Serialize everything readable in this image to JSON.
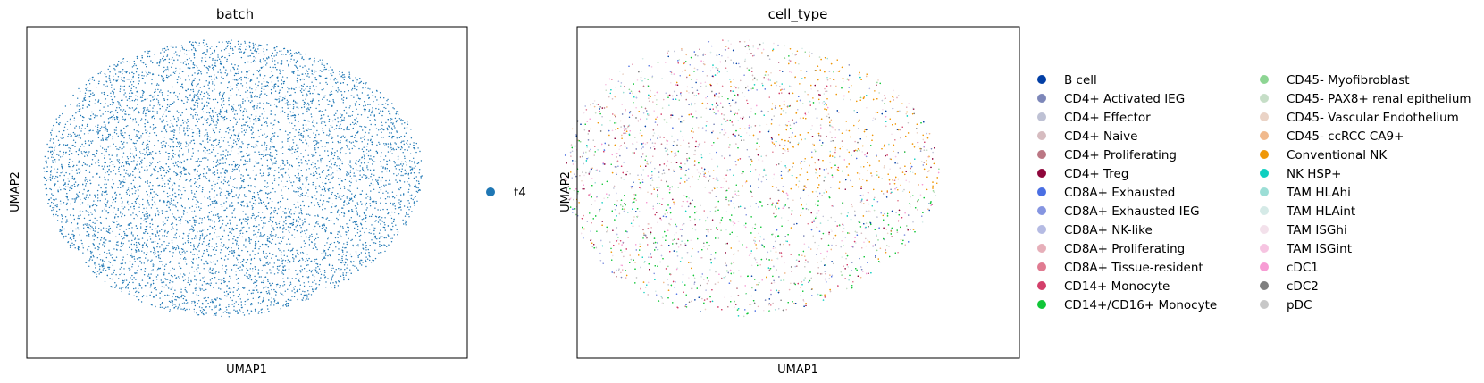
{
  "chart_data": [
    {
      "type": "scatter",
      "title": "batch",
      "xlabel": "UMAP1",
      "ylabel": "UMAP2",
      "xticks": "none",
      "yticks": "none",
      "grid": false,
      "legend_position": "right",
      "series": [
        {
          "name": "t4",
          "color": "#1f77b4"
        }
      ]
    },
    {
      "type": "scatter",
      "title": "cell_type",
      "xlabel": "UMAP1",
      "ylabel": "UMAP2",
      "xticks": "none",
      "yticks": "none",
      "grid": false,
      "legend_position": "right",
      "legend_columns": 2,
      "series": [
        {
          "name": "B cell",
          "color": "#023fa5"
        },
        {
          "name": "CD4+ Activated IEG",
          "color": "#7d87b9"
        },
        {
          "name": "CD4+ Effector",
          "color": "#bec1d4"
        },
        {
          "name": "CD4+ Naive",
          "color": "#d6bcc0"
        },
        {
          "name": "CD4+ Proliferating",
          "color": "#bb7784"
        },
        {
          "name": "CD4+ Treg",
          "color": "#8e063b"
        },
        {
          "name": "CD8A+ Exhausted",
          "color": "#4a6fe3"
        },
        {
          "name": "CD8A+ Exhausted IEG",
          "color": "#8595e1"
        },
        {
          "name": "CD8A+ NK-like",
          "color": "#b5bbe3"
        },
        {
          "name": "CD8A+ Proliferating",
          "color": "#e6afb9"
        },
        {
          "name": "CD8A+ Tissue-resident",
          "color": "#e07b91"
        },
        {
          "name": "CD14+ Monocyte",
          "color": "#d33f6a"
        },
        {
          "name": "CD14+/CD16+ Monocyte",
          "color": "#11c638"
        },
        {
          "name": "CD45- Myofibroblast",
          "color": "#8dd593"
        },
        {
          "name": "CD45- PAX8+ renal epithelium",
          "color": "#c6dec7"
        },
        {
          "name": "CD45- Vascular Endothelium",
          "color": "#ead3c6"
        },
        {
          "name": "CD45- ccRCC CA9+",
          "color": "#f0b98d"
        },
        {
          "name": "Conventional NK",
          "color": "#ef9708"
        },
        {
          "name": "NK HSP+",
          "color": "#0fcfc0"
        },
        {
          "name": "TAM HLAhi",
          "color": "#9cded6"
        },
        {
          "name": "TAM HLAint",
          "color": "#d5eae7"
        },
        {
          "name": "TAM ISGhi",
          "color": "#f3e1eb"
        },
        {
          "name": "TAM ISGint",
          "color": "#f6c4e1"
        },
        {
          "name": "cDC1",
          "color": "#f79cd4"
        },
        {
          "name": "cDC2",
          "color": "#7f7f7f"
        },
        {
          "name": "pDC",
          "color": "#c7c7c7"
        }
      ]
    }
  ]
}
